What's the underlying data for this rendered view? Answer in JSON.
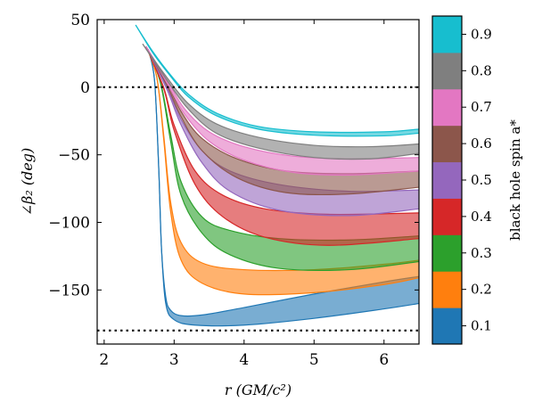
{
  "chart_data": {
    "type": "area",
    "xlabel": "r (GM/c²)",
    "ylabel": "∠β₂ (deg)",
    "xlim": [
      1.9,
      6.5
    ],
    "ylim": [
      -190,
      50
    ],
    "xticks": [
      "2",
      "3",
      "4",
      "5",
      "6"
    ],
    "xtick_values": [
      2,
      3,
      4,
      5,
      6
    ],
    "yticks": [
      "50",
      "0",
      "−50",
      "−100",
      "−150"
    ],
    "ytick_values": [
      50,
      0,
      -50,
      -100,
      -150
    ],
    "reference_lines": [
      0,
      -180
    ],
    "grid": false,
    "colorbar": {
      "label": "black hole spin a*",
      "ticks": [
        "0.1",
        "0.2",
        "0.3",
        "0.4",
        "0.5",
        "0.6",
        "0.7",
        "0.8",
        "0.9"
      ],
      "colors": [
        "#1f77b4",
        "#ff7f0e",
        "#2ca02c",
        "#d62728",
        "#9467bd",
        "#8c564b",
        "#e377c2",
        "#7f7f7f",
        "#17becf"
      ]
    },
    "series": [
      {
        "spin": 0.1,
        "color": "#1f77b4",
        "upper": [
          [
            2.63,
            28
          ],
          [
            2.72,
            5
          ],
          [
            2.78,
            -60
          ],
          [
            2.82,
            -120
          ],
          [
            2.88,
            -155
          ],
          [
            2.95,
            -165
          ],
          [
            3.1,
            -169
          ],
          [
            3.4,
            -168.5
          ],
          [
            4.0,
            -163
          ],
          [
            5.0,
            -153
          ],
          [
            6.0,
            -144
          ],
          [
            6.5,
            -140
          ]
        ],
        "lower": [
          [
            2.63,
            28
          ],
          [
            2.72,
            5
          ],
          [
            2.78,
            -60
          ],
          [
            2.82,
            -120
          ],
          [
            2.88,
            -160
          ],
          [
            3.0,
            -172
          ],
          [
            3.3,
            -176
          ],
          [
            4.0,
            -176
          ],
          [
            5.0,
            -171
          ],
          [
            6.0,
            -164
          ],
          [
            6.5,
            -160
          ]
        ]
      },
      {
        "spin": 0.2,
        "color": "#ff7f0e",
        "upper": [
          [
            2.6,
            30
          ],
          [
            2.75,
            8
          ],
          [
            2.85,
            -35
          ],
          [
            2.95,
            -85
          ],
          [
            3.1,
            -115
          ],
          [
            3.4,
            -130
          ],
          [
            4.0,
            -135
          ],
          [
            5.0,
            -135
          ],
          [
            6.0,
            -131
          ],
          [
            6.5,
            -128
          ]
        ],
        "lower": [
          [
            2.6,
            30
          ],
          [
            2.75,
            8
          ],
          [
            2.85,
            -38
          ],
          [
            2.95,
            -92
          ],
          [
            3.1,
            -128
          ],
          [
            3.4,
            -145
          ],
          [
            4.0,
            -153
          ],
          [
            5.0,
            -152
          ],
          [
            6.0,
            -146
          ],
          [
            6.5,
            -141
          ]
        ]
      },
      {
        "spin": 0.3,
        "color": "#2ca02c",
        "upper": [
          [
            2.6,
            30
          ],
          [
            2.8,
            5
          ],
          [
            2.95,
            -35
          ],
          [
            3.1,
            -70
          ],
          [
            3.4,
            -96
          ],
          [
            3.8,
            -106
          ],
          [
            4.5,
            -112
          ],
          [
            5.5,
            -113
          ],
          [
            6.5,
            -110
          ]
        ],
        "lower": [
          [
            2.6,
            30
          ],
          [
            2.8,
            4
          ],
          [
            2.95,
            -40
          ],
          [
            3.1,
            -80
          ],
          [
            3.4,
            -108
          ],
          [
            3.8,
            -124
          ],
          [
            4.5,
            -134
          ],
          [
            5.5,
            -135
          ],
          [
            6.5,
            -129
          ]
        ]
      },
      {
        "spin": 0.4,
        "color": "#d62728",
        "upper": [
          [
            2.6,
            30
          ],
          [
            2.85,
            0
          ],
          [
            3.0,
            -28
          ],
          [
            3.3,
            -62
          ],
          [
            3.7,
            -80
          ],
          [
            4.3,
            -90
          ],
          [
            5.2,
            -94
          ],
          [
            6.5,
            -93
          ]
        ],
        "lower": [
          [
            2.6,
            30
          ],
          [
            2.85,
            -1
          ],
          [
            3.0,
            -32
          ],
          [
            3.3,
            -72
          ],
          [
            3.7,
            -96
          ],
          [
            4.3,
            -111
          ],
          [
            5.2,
            -117
          ],
          [
            6.5,
            -112
          ]
        ]
      },
      {
        "spin": 0.5,
        "color": "#9467bd",
        "upper": [
          [
            2.6,
            30
          ],
          [
            2.9,
            0
          ],
          [
            3.1,
            -24
          ],
          [
            3.4,
            -47
          ],
          [
            3.8,
            -62
          ],
          [
            4.5,
            -72
          ],
          [
            5.5,
            -77
          ],
          [
            6.5,
            -76
          ]
        ],
        "lower": [
          [
            2.6,
            30
          ],
          [
            2.9,
            -2
          ],
          [
            3.1,
            -28
          ],
          [
            3.4,
            -56
          ],
          [
            3.8,
            -77
          ],
          [
            4.5,
            -91
          ],
          [
            5.5,
            -95
          ],
          [
            6.5,
            -90
          ]
        ]
      },
      {
        "spin": 0.6,
        "color": "#8c564b",
        "upper": [
          [
            2.6,
            30
          ],
          [
            2.9,
            3
          ],
          [
            3.1,
            -18
          ],
          [
            3.4,
            -38
          ],
          [
            3.9,
            -53
          ],
          [
            4.6,
            -62
          ],
          [
            5.5,
            -64
          ],
          [
            6.5,
            -62
          ]
        ],
        "lower": [
          [
            2.6,
            30
          ],
          [
            2.9,
            1
          ],
          [
            3.1,
            -22
          ],
          [
            3.4,
            -47
          ],
          [
            3.9,
            -67
          ],
          [
            4.6,
            -78
          ],
          [
            5.5,
            -79
          ],
          [
            6.5,
            -74
          ]
        ]
      },
      {
        "spin": 0.7,
        "color": "#e377c2",
        "upper": [
          [
            2.6,
            30
          ],
          [
            2.9,
            5
          ],
          [
            3.15,
            -16
          ],
          [
            3.5,
            -33
          ],
          [
            4.0,
            -44
          ],
          [
            4.7,
            -51
          ],
          [
            5.5,
            -53
          ],
          [
            6.5,
            -52
          ]
        ],
        "lower": [
          [
            2.6,
            30
          ],
          [
            2.9,
            3
          ],
          [
            3.15,
            -20
          ],
          [
            3.5,
            -40
          ],
          [
            4.0,
            -54
          ],
          [
            4.7,
            -63
          ],
          [
            5.5,
            -65
          ],
          [
            6.5,
            -62
          ]
        ]
      },
      {
        "spin": 0.8,
        "color": "#7f7f7f",
        "upper": [
          [
            2.55,
            32
          ],
          [
            2.9,
            7
          ],
          [
            3.2,
            -12
          ],
          [
            3.6,
            -27
          ],
          [
            4.2,
            -37
          ],
          [
            5.0,
            -43
          ],
          [
            5.8,
            -44
          ],
          [
            6.5,
            -42
          ]
        ],
        "lower": [
          [
            2.55,
            32
          ],
          [
            2.9,
            5
          ],
          [
            3.2,
            -16
          ],
          [
            3.6,
            -34
          ],
          [
            4.2,
            -45
          ],
          [
            5.0,
            -52
          ],
          [
            5.8,
            -53
          ],
          [
            6.5,
            -49
          ]
        ]
      },
      {
        "spin": 0.9,
        "color": "#17becf",
        "upper": [
          [
            2.45,
            46
          ],
          [
            2.7,
            26
          ],
          [
            2.95,
            9
          ],
          [
            3.2,
            -5
          ],
          [
            3.6,
            -19
          ],
          [
            4.2,
            -29
          ],
          [
            5.0,
            -33
          ],
          [
            6.0,
            -33
          ],
          [
            6.5,
            -31
          ]
        ],
        "lower": [
          [
            2.45,
            46
          ],
          [
            2.7,
            25
          ],
          [
            2.95,
            8
          ],
          [
            3.2,
            -7
          ],
          [
            3.6,
            -21
          ],
          [
            4.2,
            -31
          ],
          [
            5.0,
            -35.5
          ],
          [
            6.0,
            -36
          ],
          [
            6.5,
            -34
          ]
        ]
      }
    ]
  }
}
